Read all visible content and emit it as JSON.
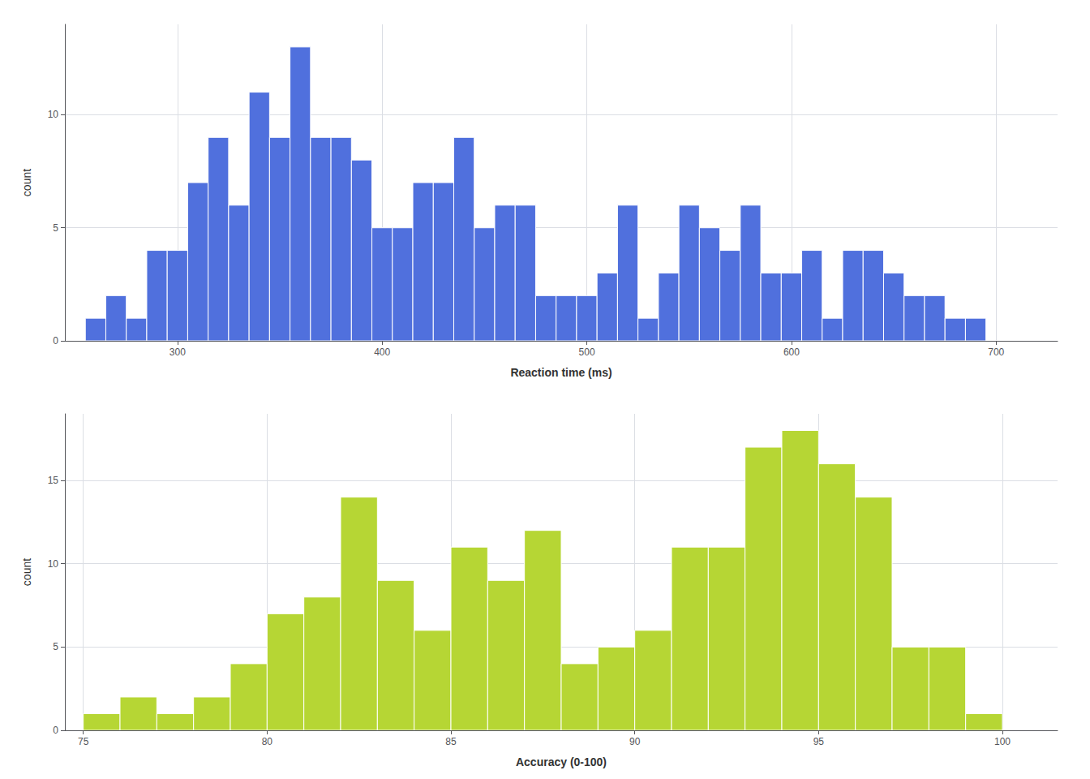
{
  "chart_data": [
    {
      "type": "histogram",
      "xlabel": "Reaction time (ms)",
      "ylabel": "count",
      "bins": [
        255,
        265,
        275,
        285,
        295,
        305,
        315,
        325,
        335,
        345,
        355,
        365,
        375,
        385,
        395,
        405,
        415,
        425,
        435,
        445,
        455,
        465,
        475,
        485,
        495,
        505,
        515,
        525,
        535,
        545,
        555,
        565,
        575,
        585,
        595,
        605,
        615,
        625,
        635,
        645,
        655,
        665,
        675,
        685,
        695,
        705,
        715,
        725
      ],
      "values": [
        1,
        2,
        1,
        4,
        4,
        7,
        9,
        6,
        11,
        9,
        13,
        9,
        9,
        8,
        5,
        5,
        7,
        7,
        9,
        5,
        6,
        6,
        2,
        2,
        2,
        3,
        6,
        1,
        3,
        6,
        5,
        4,
        6,
        3,
        3,
        4,
        1,
        4,
        4,
        3,
        2,
        2,
        1,
        1,
        0,
        0,
        0
      ],
      "xlim": [
        245,
        730
      ],
      "ylim": [
        0,
        14
      ],
      "xticks": [
        300,
        400,
        500,
        600,
        700
      ],
      "yticks": [
        0,
        5,
        10
      ],
      "grid": true
    },
    {
      "type": "histogram",
      "xlabel": "Accuracy (0-100)",
      "ylabel": "count",
      "bins": [
        75,
        76,
        77,
        78,
        79,
        80,
        81,
        82,
        83,
        84,
        85,
        86,
        87,
        88,
        89,
        90,
        91,
        92,
        93,
        94,
        95,
        96,
        97,
        98,
        99,
        100
      ],
      "values": [
        1,
        2,
        1,
        2,
        4,
        7,
        8,
        14,
        9,
        6,
        11,
        9,
        12,
        4,
        5,
        6,
        11,
        11,
        17,
        18,
        16,
        14,
        5,
        5,
        1
      ],
      "xlim": [
        74.5,
        101.5
      ],
      "ylim": [
        0,
        19
      ],
      "xticks": [
        75,
        80,
        85,
        90,
        95,
        100
      ],
      "yticks": [
        0,
        5,
        10,
        15
      ],
      "grid": true
    }
  ]
}
